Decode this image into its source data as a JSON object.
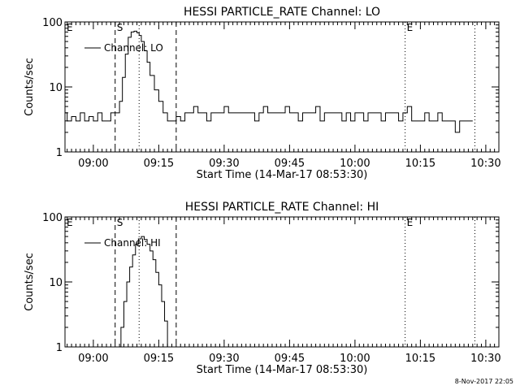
{
  "footer": {
    "timestamp": "8-Nov-2017 22:05"
  },
  "chart_data": [
    {
      "type": "line",
      "title": "HESSI PARTICLE_RATE Channel: LO",
      "xlabel": "Start Time (14-Mar-17 08:53:30)",
      "ylabel": "Counts/sec",
      "y_scale": "log",
      "ylim": [
        1,
        100
      ],
      "y_ticks": [
        1,
        10,
        100
      ],
      "y_tick_labels": [
        "1",
        "10",
        "100"
      ],
      "xlim": [
        "08:53:30",
        "10:33:00"
      ],
      "x_ticks": [
        "09:00",
        "09:15",
        "09:30",
        "09:45",
        "10:00",
        "10:15",
        "10:30"
      ],
      "legend": {
        "position": "top-left",
        "entries": [
          "Channel: LO"
        ]
      },
      "markers": [
        {
          "label": "E",
          "time": "08:53:30",
          "style": "none"
        },
        {
          "label": "S",
          "time": "09:05:00",
          "style": "dashed"
        },
        {
          "label": "",
          "time": "09:10:30",
          "style": "dotted"
        },
        {
          "label": "",
          "time": "09:19:00",
          "style": "dashed"
        },
        {
          "label": "E",
          "time": "10:11:30",
          "style": "dotted"
        },
        {
          "label": "",
          "time": "10:27:30",
          "style": "dotted"
        }
      ],
      "series": [
        {
          "name": "Channel: LO",
          "x": [
            "08:53:30",
            "08:54:00",
            "08:55:00",
            "08:56:00",
            "08:57:00",
            "08:58:00",
            "08:59:00",
            "09:00:00",
            "09:01:00",
            "09:02:00",
            "09:03:00",
            "09:04:00",
            "09:05:00",
            "09:06:00",
            "09:06:40",
            "09:07:20",
            "09:08:00",
            "09:08:40",
            "09:09:20",
            "09:10:00",
            "09:10:30",
            "09:11:00",
            "09:11:40",
            "09:12:20",
            "09:13:00",
            "09:14:00",
            "09:15:00",
            "09:16:00",
            "09:17:00",
            "09:18:00",
            "09:19:00",
            "09:20:00",
            "09:21:00",
            "09:22:00",
            "09:23:00",
            "09:24:00",
            "09:25:00",
            "09:26:00",
            "09:27:00",
            "09:28:00",
            "09:29:00",
            "09:30:00",
            "09:31:00",
            "09:32:00",
            "09:33:00",
            "09:34:00",
            "09:35:00",
            "09:36:00",
            "09:37:00",
            "09:38:00",
            "09:39:00",
            "09:40:00",
            "09:41:00",
            "09:42:00",
            "09:43:00",
            "09:44:00",
            "09:45:00",
            "09:46:00",
            "09:47:00",
            "09:48:00",
            "09:49:00",
            "09:50:00",
            "09:51:00",
            "09:52:00",
            "09:53:00",
            "09:54:00",
            "09:55:00",
            "09:56:00",
            "09:57:00",
            "09:58:00",
            "09:59:00",
            "10:00:00",
            "10:01:00",
            "10:02:00",
            "10:03:00",
            "10:04:00",
            "10:05:00",
            "10:06:00",
            "10:07:00",
            "10:08:00",
            "10:09:00",
            "10:10:00",
            "10:11:00",
            "10:12:00",
            "10:13:00",
            "10:14:00",
            "10:15:00",
            "10:16:00",
            "10:17:00",
            "10:18:00",
            "10:19:00",
            "10:20:00",
            "10:21:00",
            "10:22:00",
            "10:23:00",
            "10:24:00",
            "10:25:00",
            "10:26:00",
            "10:27:00"
          ],
          "y": [
            4,
            3,
            3.5,
            3,
            4,
            3,
            3.5,
            3,
            4,
            3,
            3,
            4,
            4,
            6,
            14,
            32,
            58,
            70,
            72,
            68,
            62,
            50,
            36,
            24,
            15,
            9,
            6,
            4,
            3,
            3,
            3.5,
            3,
            4,
            4,
            5,
            4,
            4,
            3,
            4,
            4,
            4,
            5,
            4,
            4,
            4,
            4,
            4,
            4,
            3,
            4,
            5,
            4,
            4,
            4,
            4,
            5,
            4,
            4,
            3,
            4,
            4,
            4,
            5,
            3,
            4,
            4,
            4,
            4,
            3,
            4,
            3,
            4,
            4,
            3,
            4,
            4,
            4,
            3,
            4,
            4,
            4,
            3,
            4,
            5,
            3,
            3,
            3,
            4,
            3,
            3,
            4,
            3,
            3,
            3,
            2,
            3,
            3,
            3,
            3
          ]
        }
      ]
    },
    {
      "type": "line",
      "title": "HESSI PARTICLE_RATE Channel: HI",
      "xlabel": "Start Time (14-Mar-17 08:53:30)",
      "ylabel": "Counts/sec",
      "y_scale": "log",
      "ylim": [
        1,
        100
      ],
      "y_ticks": [
        1,
        10,
        100
      ],
      "y_tick_labels": [
        "1",
        "10",
        "100"
      ],
      "xlim": [
        "08:53:30",
        "10:33:00"
      ],
      "x_ticks": [
        "09:00",
        "09:15",
        "09:30",
        "09:45",
        "10:00",
        "10:15",
        "10:30"
      ],
      "legend": {
        "position": "top-left",
        "entries": [
          "Channel: HI"
        ]
      },
      "markers": [
        {
          "label": "E",
          "time": "08:53:30",
          "style": "none"
        },
        {
          "label": "S",
          "time": "09:05:00",
          "style": "dashed"
        },
        {
          "label": "",
          "time": "09:10:30",
          "style": "dotted"
        },
        {
          "label": "",
          "time": "09:19:00",
          "style": "dashed"
        },
        {
          "label": "E",
          "time": "10:11:30",
          "style": "dotted"
        },
        {
          "label": "",
          "time": "10:27:30",
          "style": "dotted"
        }
      ],
      "series": [
        {
          "name": "Channel: HI",
          "x": [
            "09:05:40",
            "09:06:20",
            "09:07:00",
            "09:07:40",
            "09:08:20",
            "09:09:00",
            "09:09:40",
            "09:10:20",
            "09:11:00",
            "09:11:40",
            "09:12:20",
            "09:13:00",
            "09:13:40",
            "09:14:20",
            "09:15:00",
            "09:15:40",
            "09:16:20",
            "09:17:00"
          ],
          "y": [
            1,
            2,
            5,
            10,
            17,
            26,
            38,
            46,
            50,
            45,
            38,
            30,
            22,
            14,
            9,
            5,
            2.5,
            1
          ]
        }
      ]
    }
  ]
}
